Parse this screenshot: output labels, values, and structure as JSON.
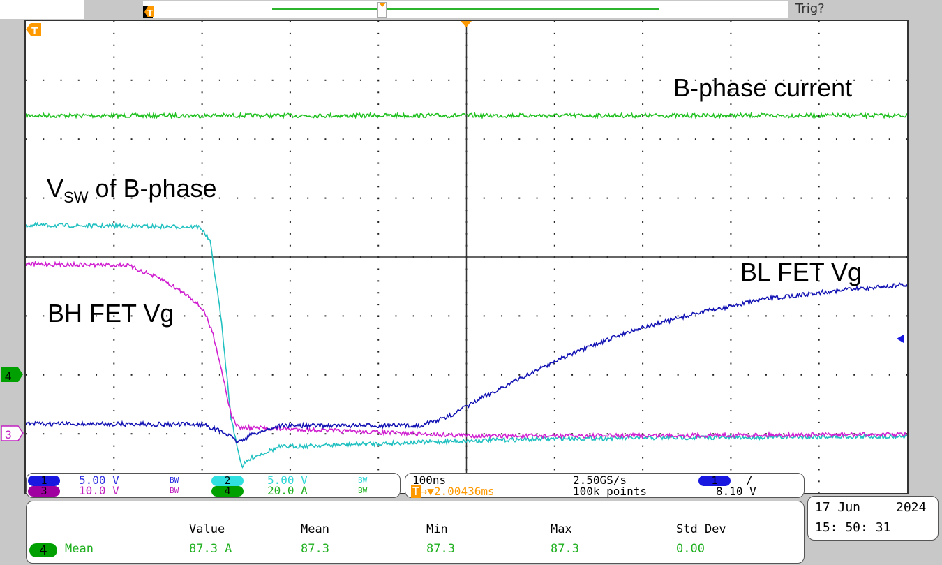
{
  "header": {
    "trigger_status": "Trig?"
  },
  "annotations": {
    "b_phase_current": "B-phase current",
    "vsw_main": "V",
    "vsw_sub": "SW",
    "vsw_rest": " of B-phase",
    "bh_fet": "BH FET Vg",
    "bl_fet": "BL FET Vg"
  },
  "channels": [
    {
      "id": "1",
      "scale": "5.00 V",
      "bw": "BW",
      "color": "#1818e0",
      "trace_color": "#1414b4"
    },
    {
      "id": "2",
      "scale": "5.00 V",
      "bw": "BW",
      "color": "#30e0e0",
      "trace_color": "#20c0c0"
    },
    {
      "id": "3",
      "scale": "10.0 V",
      "bw": "BW",
      "color": "#a000a0",
      "trace_color": "#d020d0"
    },
    {
      "id": "4",
      "scale": "20.0 A",
      "bw": "BW",
      "color": "#00a000",
      "trace_color": "#20c020"
    }
  ],
  "timebase": {
    "time_div": "100ns",
    "sample_rate": "2.50GS/s",
    "trigger_pos_icon": "T",
    "trigger_delay": "→▼2.00436ms",
    "record_length": "100k points",
    "trigger_source": "1",
    "trigger_slope": "rising-edge-icon",
    "trigger_level": "8.10 V"
  },
  "measurement": {
    "headers": [
      "Value",
      "Mean",
      "Min",
      "Max",
      "Std Dev"
    ],
    "channel": "4",
    "name": "Mean",
    "values": [
      "87.3 A",
      "87.3",
      "87.3",
      "87.3",
      "0.00"
    ]
  },
  "datetime": {
    "date": "17 Jun",
    "year": "2024",
    "time": "15: 50: 31"
  },
  "chart_data": {
    "type": "line",
    "title": "",
    "xlabel": "",
    "ylabel": "",
    "x_units": "ns (100ns/div)",
    "y_units": "graticule divisions",
    "xlim": [
      -500,
      500
    ],
    "ylim": [
      -4,
      4
    ],
    "grid": true,
    "series": [
      {
        "channel": "4",
        "color": "#20c020",
        "x": [
          -500,
          500
        ],
        "y": [
          2.4,
          2.4
        ]
      },
      {
        "channel": "2",
        "color": "#20c0c0",
        "x": [
          -500,
          -302,
          -291,
          -279,
          -267,
          -255,
          -243,
          -212,
          -133,
          0,
          104,
          500
        ],
        "y": [
          0.54,
          0.51,
          0.27,
          -0.97,
          -2.75,
          -3.55,
          -3.4,
          -3.22,
          -3.18,
          -3.12,
          -3.08,
          -3.04
        ]
      },
      {
        "channel": "3",
        "color": "#d020d0",
        "x": [
          -500,
          -385,
          -346,
          -314,
          -298,
          -287,
          -276,
          -267,
          -259,
          -212,
          -93,
          25,
          500
        ],
        "y": [
          -0.12,
          -0.14,
          -0.38,
          -0.67,
          -0.91,
          -1.33,
          -2.04,
          -2.69,
          -2.89,
          -2.91,
          -2.98,
          -3.04,
          -3.01
        ]
      },
      {
        "channel": "1",
        "color": "#1414b4",
        "x": [
          -500,
          -298,
          -275,
          -259,
          -243,
          -212,
          -54,
          -22,
          25,
          104,
          183,
          262,
          341,
          420,
          500
        ],
        "y": [
          -2.83,
          -2.84,
          -2.98,
          -3.14,
          -3.01,
          -2.86,
          -2.86,
          -2.72,
          -2.33,
          -1.74,
          -1.27,
          -0.95,
          -0.71,
          -0.57,
          -0.47
        ]
      }
    ]
  }
}
